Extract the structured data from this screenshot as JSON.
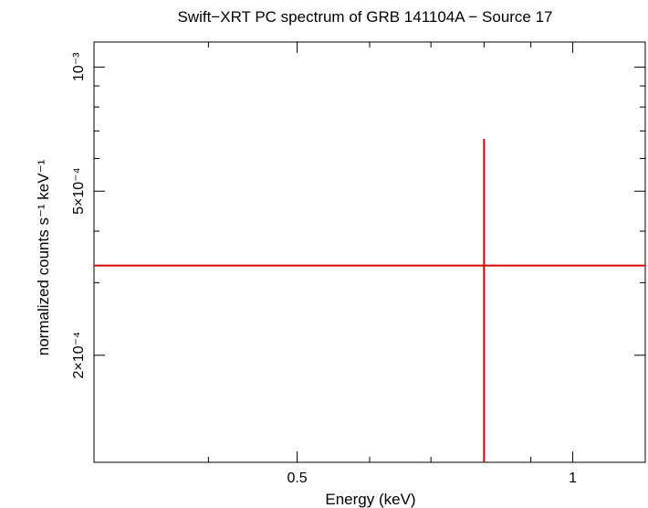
{
  "chart_data": {
    "type": "scatter",
    "title": "Swift−XRT PC spectrum of GRB 141104A − Source 17",
    "xlabel": "Energy (keV)",
    "ylabel": "normalized counts s⁻¹ keV⁻¹",
    "x_scale": "log",
    "y_scale": "log",
    "xlim": [
      0.3,
      1.2
    ],
    "ylim": [
      0.00011,
      0.00115
    ],
    "x_ticks": [
      {
        "value": 0.5,
        "label": "0.5"
      },
      {
        "value": 1,
        "label": "1"
      }
    ],
    "y_ticks": [
      {
        "value": 0.0002,
        "label": "2×10⁻⁴"
      },
      {
        "value": 0.0005,
        "label": "5×10⁻⁴"
      },
      {
        "value": 0.001,
        "label": "10⁻³"
      }
    ],
    "series": [
      {
        "color": "#e00000",
        "points": [
          {
            "x": 0.8,
            "y": 0.00033,
            "x_err": [
              0.3,
              1.2
            ],
            "y_err": [
              0.00011,
              0.00067
            ]
          }
        ]
      }
    ]
  }
}
